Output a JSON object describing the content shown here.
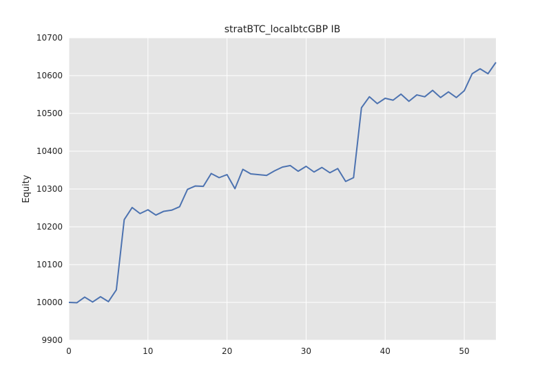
{
  "chart_data": {
    "type": "line",
    "title": "stratBTC_localbtcGBP IB",
    "xlabel": "",
    "ylabel": "Equity",
    "xlim": [
      0,
      54
    ],
    "ylim": [
      9900,
      10700
    ],
    "grid": true,
    "x_ticks": [
      "0",
      "10",
      "20",
      "30",
      "40",
      "50"
    ],
    "y_ticks": [
      "9900",
      "10000",
      "10100",
      "10200",
      "10300",
      "10400",
      "10500",
      "10600",
      "10700"
    ],
    "colors": {
      "background": "#e5e5e5",
      "grid": "#ffffff",
      "line": "#4c72b0"
    },
    "series": [
      {
        "values": [
          10000,
          9999,
          10014,
          10001,
          10015,
          10002,
          10033,
          10219,
          10251,
          10235,
          10245,
          10231,
          10241,
          10244,
          10253,
          10299,
          10308,
          10307,
          10341,
          10330,
          10338,
          10301,
          10352,
          10340,
          10338,
          10336,
          10348,
          10358,
          10362,
          10347,
          10360,
          10345,
          10357,
          10343,
          10354,
          10320,
          10330,
          10515,
          10544,
          10526,
          10540,
          10535,
          10551,
          10532,
          10549,
          10544,
          10561,
          10542,
          10557,
          10542,
          10560,
          10605,
          10618,
          10605,
          10635
        ]
      }
    ]
  }
}
